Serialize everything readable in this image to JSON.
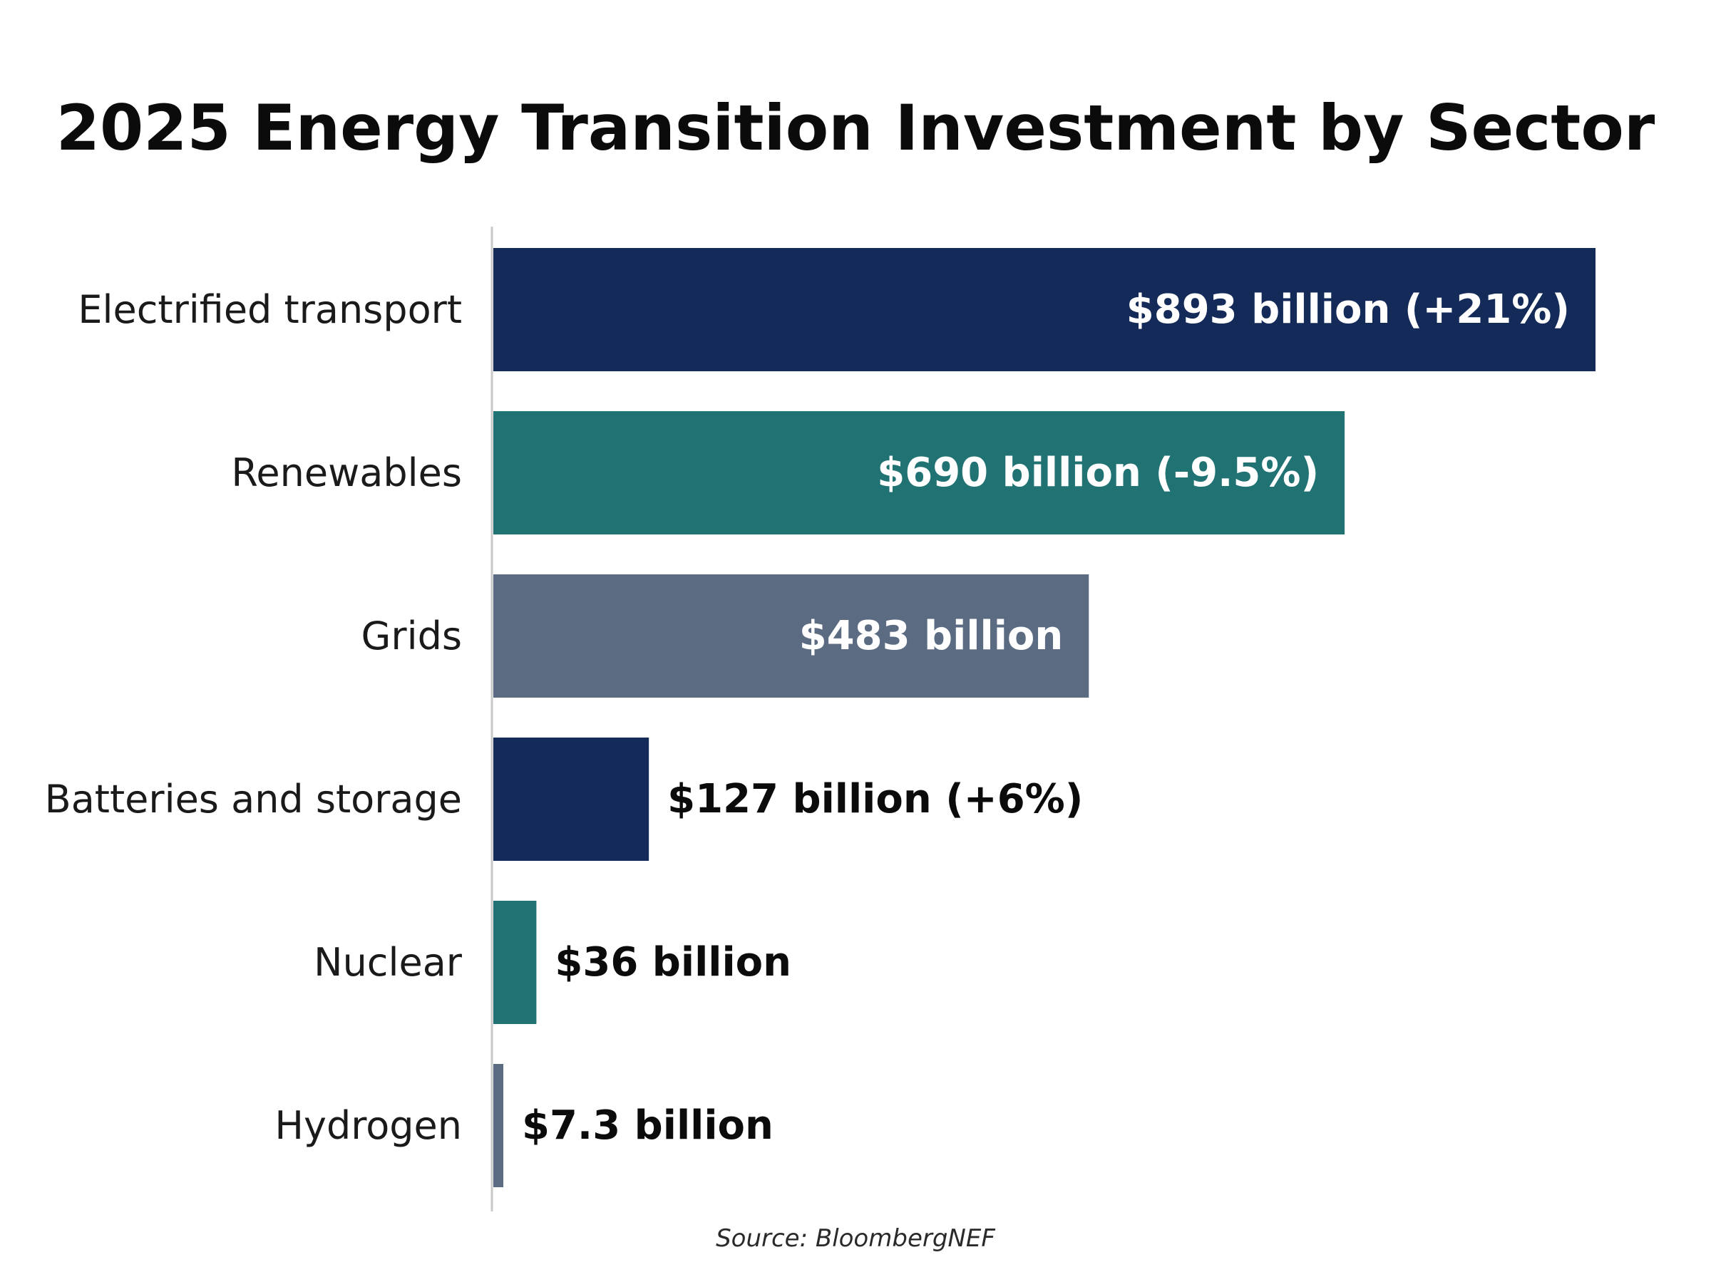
{
  "chart_data": {
    "type": "bar",
    "orientation": "horizontal",
    "title": "2025 Energy Transition Investment by Sector",
    "source": "Source: BloombergNEF",
    "categories": [
      "Electrified transport",
      "Renewables",
      "Grids",
      "Batteries and storage",
      "Nuclear",
      "Hydrogen"
    ],
    "values": [
      893,
      690,
      483,
      127,
      36,
      7.3
    ],
    "unit": "billion USD",
    "data_labels": [
      "$893 billion (+21%)",
      "$690 billion (-9.5%)",
      "$483 billion",
      "$127 billion (+6%)",
      "$36 billion",
      "$7.3 billion"
    ],
    "label_inside_bar": [
      true,
      true,
      true,
      false,
      false,
      false
    ],
    "bar_colors": [
      "#142b5a",
      "#217373",
      "#5a6b82",
      "#142b5a",
      "#217373",
      "#5a6b82"
    ],
    "xlim": [
      0,
      893
    ],
    "grid": false,
    "legend": "none"
  }
}
